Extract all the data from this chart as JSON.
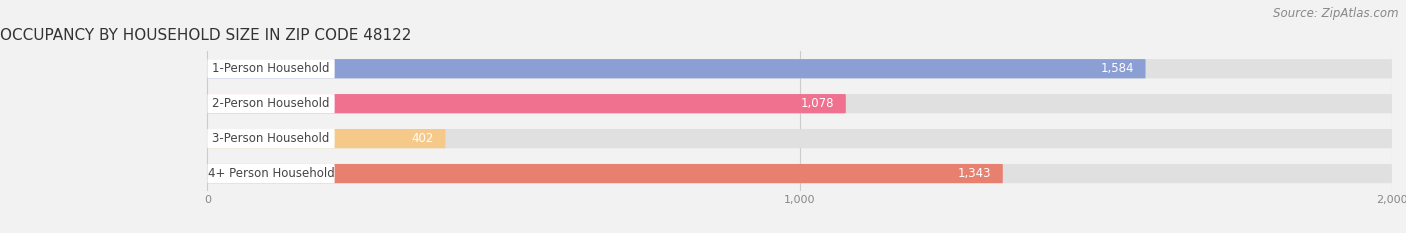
{
  "title": "OCCUPANCY BY HOUSEHOLD SIZE IN ZIP CODE 48122",
  "source": "Source: ZipAtlas.com",
  "categories": [
    "1-Person Household",
    "2-Person Household",
    "3-Person Household",
    "4+ Person Household"
  ],
  "values": [
    1584,
    1078,
    402,
    1343
  ],
  "bar_colors": [
    "#8b9fd4",
    "#f07090",
    "#f5c98a",
    "#e88070"
  ],
  "background_color": "#f2f2f2",
  "bar_bg_color": "#e0e0e0",
  "label_box_color": "#ffffff",
  "title_color": "#333333",
  "source_color": "#888888",
  "value_color_inside": "#ffffff",
  "value_color_outside": "#555555",
  "tick_color": "#888888",
  "grid_color": "#cccccc",
  "label_text_color": "#444444",
  "xlim_max": 2000,
  "xticks": [
    0,
    1000,
    2000
  ],
  "title_fontsize": 11,
  "source_fontsize": 8.5,
  "label_fontsize": 8.5,
  "value_fontsize": 8.5,
  "tick_fontsize": 8
}
